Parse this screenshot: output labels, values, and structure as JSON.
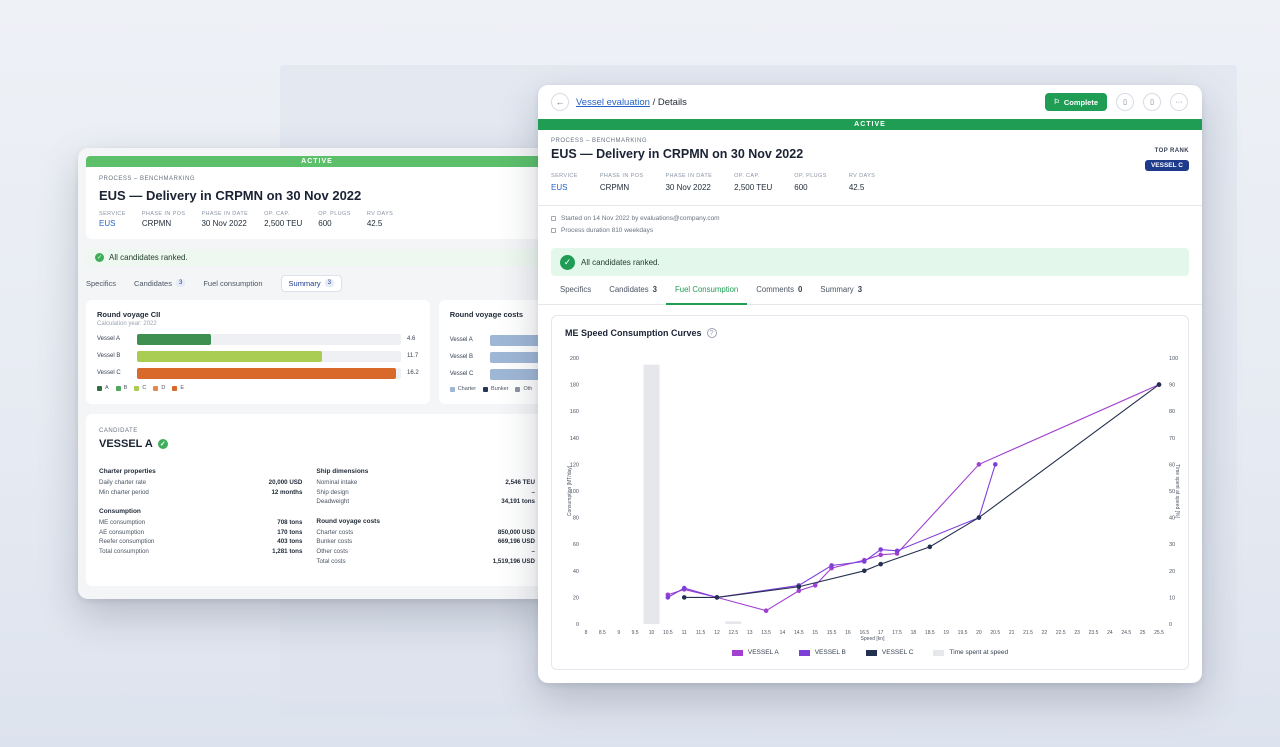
{
  "back_window": {
    "status": "ACTIVE",
    "process_label": "PROCESS – BENCHMARKING",
    "title": "EUS — Delivery in CRPMN on 30 Nov 2022",
    "meta": [
      {
        "label": "SERVICE",
        "value": "EUS"
      },
      {
        "label": "PHASE IN POS",
        "value": "CRPMN"
      },
      {
        "label": "PHASE IN DATE",
        "value": "30 Nov 2022"
      },
      {
        "label": "OP. CAP.",
        "value": "2,500 TEU"
      },
      {
        "label": "OP. PLUGS",
        "value": "600"
      },
      {
        "label": "RV DAYS",
        "value": "42.5"
      }
    ],
    "ranked_text": "All candidates ranked.",
    "tabs": [
      {
        "label": "Specifics",
        "count": ""
      },
      {
        "label": "Candidates",
        "count": "3"
      },
      {
        "label": "Fuel consumption",
        "count": ""
      },
      {
        "label": "Summary",
        "count": "3"
      }
    ],
    "cii_card": {
      "title": "Round voyage CII",
      "subtitle": "Calculation year: 2022",
      "bars": [
        {
          "label": "Vessel A",
          "value": "4.6",
          "frac": 0.28,
          "color": "#3e8f50"
        },
        {
          "label": "Vessel B",
          "value": "11.7",
          "frac": 0.7,
          "color": "#a9cc52"
        },
        {
          "label": "Vessel C",
          "value": "16.2",
          "frac": 0.98,
          "color": "#d9682b"
        }
      ],
      "legend": [
        {
          "label": "A",
          "color": "#2f6e3f"
        },
        {
          "label": "B",
          "color": "#4fa85c"
        },
        {
          "label": "C",
          "color": "#a9cc52"
        },
        {
          "label": "D",
          "color": "#e48a4a"
        },
        {
          "label": "E",
          "color": "#d9682b"
        }
      ]
    },
    "cost_card": {
      "title": "Round voyage costs",
      "bars": [
        {
          "label": "Vessel A",
          "frac": 0.9
        },
        {
          "label": "Vessel B",
          "frac": 0.9
        },
        {
          "label": "Vessel C",
          "frac": 0.9
        }
      ],
      "legend": [
        {
          "label": "Charter",
          "color": "#9fb7d6"
        },
        {
          "label": "Bunker",
          "color": "#263659"
        },
        {
          "label": "Oth",
          "color": "#8b93a1"
        }
      ]
    },
    "candidate": {
      "label": "CANDIDATE",
      "name": "VESSEL A",
      "charter_head": "Charter properties",
      "charter": [
        {
          "k": "Daily charter rate",
          "v": "20,000 USD"
        },
        {
          "k": "Min charter period",
          "v": "12 months"
        }
      ],
      "consumption_head": "Consumption",
      "consumption": [
        {
          "k": "ME consumption",
          "v": "708 tons"
        },
        {
          "k": "AE consumption",
          "v": "170 tons"
        },
        {
          "k": "Reefer consumption",
          "v": "403 tons"
        },
        {
          "k": "Total consumption",
          "v": "1,281 tons"
        }
      ],
      "dims_head": "Ship dimensions",
      "dims": [
        {
          "k": "Nominal intake",
          "v": "2,546 TEU"
        },
        {
          "k": "Ship design",
          "v": "–"
        },
        {
          "k": "Deadweight",
          "v": "34,191 tons"
        }
      ],
      "costs_head": "Round voyage costs",
      "costs": [
        {
          "k": "Charter costs",
          "v": "850,000 USD"
        },
        {
          "k": "Bunker costs",
          "v": "669,196 USD"
        },
        {
          "k": "Other costs",
          "v": "–"
        },
        {
          "k": "Total costs",
          "v": "1,519,196 USD"
        }
      ]
    }
  },
  "front_window": {
    "back_icon": "arrow-left-icon",
    "breadcrumb_link": "Vessel evaluation",
    "breadcrumb_sep": " / ",
    "breadcrumb_current": "Details",
    "complete_label": "Complete",
    "status": "ACTIVE",
    "process_label": "PROCESS – BENCHMARKING",
    "title": "EUS — Delivery in CRPMN on 30 Nov 2022",
    "top_rank_label": "TOP RANK",
    "top_rank_value": "VESSEL C",
    "meta": [
      {
        "label": "SERVICE",
        "value": "EUS"
      },
      {
        "label": "PHASE IN POS",
        "value": "CRPMN"
      },
      {
        "label": "PHASE IN DATE",
        "value": "30 Nov 2022"
      },
      {
        "label": "OP. CAP.",
        "value": "2,500 TEU"
      },
      {
        "label": "OP. PLUGS",
        "value": "600"
      },
      {
        "label": "RV DAYS",
        "value": "42.5"
      }
    ],
    "info": [
      "Started on 14 Nov 2022 by evaluations@company.com",
      "Process duration 810 weekdays"
    ],
    "ranked_text": "All candidates ranked.",
    "tabs": [
      {
        "label": "Specifics",
        "count": ""
      },
      {
        "label": "Candidates",
        "count": "3"
      },
      {
        "label": "Fuel Consumption",
        "count": ""
      },
      {
        "label": "Comments",
        "count": "0"
      },
      {
        "label": "Summary",
        "count": "3"
      }
    ],
    "chart_title": "ME Speed Consumption Curves",
    "legend": [
      {
        "label": "VESSEL A",
        "color": "#a13fd0"
      },
      {
        "label": "VESSEL B",
        "color": "#7e3fd9"
      },
      {
        "label": "VESSEL C",
        "color": "#243050"
      },
      {
        "label": "Time spent at speed",
        "color": "#e5e7eb"
      }
    ]
  },
  "chart_data": {
    "type": "line",
    "title": "ME Speed Consumption Curves",
    "xlabel": "Speed [kn]",
    "ylabel": "Consumption [MT/day]",
    "y2label": "Time spent at speed [%]",
    "xlim": [
      8,
      25.5
    ],
    "ylim": [
      0,
      200
    ],
    "y2lim": [
      0,
      100
    ],
    "x_ticks": [
      8,
      8.5,
      9,
      9.5,
      10,
      10.5,
      11,
      11.5,
      12,
      12.5,
      13,
      13.5,
      14,
      14.5,
      15,
      15.5,
      16,
      16.5,
      17,
      17.5,
      18,
      18.5,
      19,
      19.5,
      20,
      20.5,
      21,
      21.5,
      22,
      22.5,
      23,
      23.5,
      24,
      24.5,
      25,
      25.5
    ],
    "y_ticks": [
      0,
      20,
      40,
      60,
      80,
      100,
      120,
      140,
      160,
      180,
      200
    ],
    "y2_ticks": [
      0,
      10,
      20,
      30,
      40,
      50,
      60,
      70,
      80,
      90,
      100
    ],
    "series": [
      {
        "name": "VESSEL A",
        "color": "#a13fd0",
        "points": [
          [
            10.5,
            22
          ],
          [
            11,
            26
          ],
          [
            12,
            20
          ],
          [
            13.5,
            10
          ],
          [
            14.5,
            25
          ],
          [
            15,
            29
          ],
          [
            15.5,
            42
          ],
          [
            16.5,
            48
          ],
          [
            17,
            52
          ],
          [
            17.5,
            53
          ],
          [
            20,
            120
          ],
          [
            25.5,
            180
          ]
        ]
      },
      {
        "name": "VESSEL B",
        "color": "#7e3fd9",
        "points": [
          [
            10.5,
            20
          ],
          [
            11,
            27
          ],
          [
            12,
            20
          ],
          [
            14.5,
            29
          ],
          [
            15.5,
            44
          ],
          [
            16.5,
            47
          ],
          [
            17,
            56
          ],
          [
            17.5,
            55
          ],
          [
            20,
            80
          ],
          [
            20.5,
            120
          ]
        ]
      },
      {
        "name": "VESSEL C",
        "color": "#243050",
        "points": [
          [
            11,
            20
          ],
          [
            12,
            20
          ],
          [
            14.5,
            28
          ],
          [
            16.5,
            40
          ],
          [
            17,
            45
          ],
          [
            18.5,
            58
          ],
          [
            20,
            80
          ],
          [
            25.5,
            180
          ]
        ]
      }
    ],
    "time_spent": [
      {
        "x": 10,
        "value": 97.5
      },
      {
        "x": 12.5,
        "value": 1
      }
    ]
  }
}
